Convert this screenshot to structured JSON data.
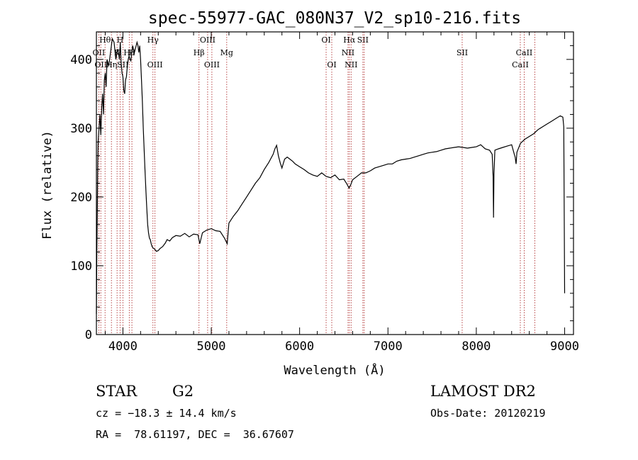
{
  "chart_data": {
    "type": "line",
    "title": "spec-55977-GAC_080N37_V2_sp10-216.fits",
    "xlabel": "Wavelength (Å)",
    "ylabel": "Flux (relative)",
    "xlim": [
      3700,
      9100
    ],
    "ylim": [
      0,
      440
    ],
    "xticks": [
      4000,
      5000,
      6000,
      7000,
      8000,
      9000
    ],
    "yticks": [
      0,
      100,
      200,
      300,
      400
    ],
    "grid": false,
    "line_color": "#000000",
    "marker_color": "#b03030",
    "series": [
      {
        "x": [
          3700,
          3705,
          3710,
          3715,
          3720,
          3730,
          3740,
          3750,
          3760,
          3770,
          3780,
          3790,
          3800,
          3810,
          3820,
          3840,
          3860,
          3880,
          3900,
          3920,
          3940,
          3950,
          3960,
          3970,
          3980,
          3990,
          4000,
          4010,
          4020,
          4030,
          4040,
          4050,
          4060,
          4070,
          4080,
          4090,
          4100,
          4110,
          4120,
          4130,
          4140,
          4150,
          4160,
          4170,
          4180,
          4190,
          4200,
          4210,
          4220,
          4230,
          4240,
          4250,
          4260,
          4270,
          4280,
          4290,
          4300,
          4310,
          4320,
          4330,
          4340,
          4350,
          4360,
          4380,
          4400,
          4420,
          4450,
          4480,
          4500,
          4530,
          4560,
          4600,
          4650,
          4700,
          4750,
          4800,
          4850,
          4870,
          4900,
          4950,
          5000,
          5050,
          5100,
          5150,
          5180,
          5200,
          5250,
          5300,
          5350,
          5400,
          5450,
          5500,
          5550,
          5600,
          5650,
          5700,
          5720,
          5740,
          5760,
          5780,
          5800,
          5830,
          5860,
          5890,
          5920,
          5950,
          6000,
          6050,
          6100,
          6150,
          6200,
          6250,
          6300,
          6350,
          6400,
          6450,
          6500,
          6530,
          6560,
          6580,
          6600,
          6650,
          6700,
          6750,
          6800,
          6850,
          6900,
          6950,
          7000,
          7050,
          7100,
          7150,
          7200,
          7250,
          7300,
          7350,
          7400,
          7450,
          7500,
          7550,
          7600,
          7650,
          7700,
          7750,
          7800,
          7850,
          7900,
          7950,
          8000,
          8050,
          8100,
          8150,
          8180,
          8190,
          8195,
          8200,
          8210,
          8250,
          8300,
          8350,
          8400,
          8430,
          8440,
          8450,
          8460,
          8500,
          8550,
          8600,
          8650,
          8700,
          8750,
          8800,
          8850,
          8900,
          8950,
          8980,
          8990,
          9000
        ],
        "y": [
          30,
          120,
          170,
          250,
          280,
          300,
          320,
          290,
          330,
          350,
          320,
          370,
          380,
          360,
          400,
          390,
          410,
          430,
          425,
          400,
          415,
          410,
          400,
          425,
          395,
          380,
          375,
          355,
          350,
          370,
          375,
          390,
          400,
          405,
          400,
          398,
          410,
          420,
          415,
          410,
          415,
          420,
          425,
          420,
          410,
          420,
          400,
          370,
          340,
          300,
          270,
          240,
          210,
          185,
          160,
          148,
          140,
          138,
          132,
          128,
          126,
          125,
          124,
          121,
          122,
          125,
          128,
          133,
          138,
          136,
          141,
          144,
          143,
          147,
          142,
          146,
          145,
          132,
          148,
          152,
          154,
          151,
          150,
          140,
          132,
          162,
          172,
          180,
          190,
          200,
          210,
          220,
          228,
          240,
          250,
          262,
          270,
          275,
          260,
          250,
          242,
          255,
          258,
          255,
          252,
          248,
          244,
          240,
          235,
          232,
          230,
          235,
          230,
          228,
          232,
          225,
          226,
          220,
          213,
          218,
          225,
          230,
          235,
          235,
          238,
          242,
          244,
          246,
          248,
          248,
          252,
          254,
          255,
          256,
          258,
          260,
          262,
          264,
          265,
          266,
          268,
          270,
          271,
          272,
          273,
          272,
          271,
          272,
          273,
          276,
          270,
          268,
          262,
          230,
          170,
          232,
          268,
          270,
          272,
          274,
          276,
          262,
          258,
          248,
          265,
          278,
          284,
          288,
          292,
          298,
          302,
          306,
          310,
          314,
          318,
          316,
          302,
          60
        ]
      }
    ],
    "spectral_lines": [
      {
        "wl": 3727,
        "label": "OII",
        "tier": 1
      },
      {
        "wl": 3750,
        "label": "OII",
        "tier": 2
      },
      {
        "wl": 3798,
        "label": "Hθ",
        "tier": 0
      },
      {
        "wl": 3870,
        "label": "Hη",
        "tier": 2
      },
      {
        "wl": 3934,
        "label": "K",
        "tier": 1
      },
      {
        "wl": 3968,
        "label": "H",
        "tier": 0
      },
      {
        "wl": 4000,
        "label": "SII",
        "tier": 2
      },
      {
        "wl": 4072,
        "label": "Hδ",
        "tier": 1
      },
      {
        "wl": 4102,
        "label": "H",
        "tier": 1
      },
      {
        "wl": 4340,
        "label": "Hγ",
        "tier": 0
      },
      {
        "wl": 4363,
        "label": "OIII",
        "tier": 2
      },
      {
        "wl": 4861,
        "label": "Hβ",
        "tier": 1
      },
      {
        "wl": 4959,
        "label": "OIII",
        "tier": 0
      },
      {
        "wl": 5007,
        "label": "OIII",
        "tier": 2
      },
      {
        "wl": 5175,
        "label": "Mg",
        "tier": 1
      },
      {
        "wl": 6300,
        "label": "OI",
        "tier": 0
      },
      {
        "wl": 6364,
        "label": "OI",
        "tier": 2
      },
      {
        "wl": 6548,
        "label": "NII",
        "tier": 1
      },
      {
        "wl": 6563,
        "label": "Hα",
        "tier": 0
      },
      {
        "wl": 6583,
        "label": "NII",
        "tier": 2
      },
      {
        "wl": 6716,
        "label": "SII",
        "tier": 0
      },
      {
        "wl": 6731,
        "label": "",
        "tier": 0
      },
      {
        "wl": 7840,
        "label": "SII",
        "tier": 1
      },
      {
        "wl": 8498,
        "label": "CaII",
        "tier": 2
      },
      {
        "wl": 8542,
        "label": "CaII",
        "tier": 1
      },
      {
        "wl": 8662,
        "label": "",
        "tier": 1
      }
    ]
  },
  "info": {
    "object_class": "STAR",
    "subclass": "G2",
    "survey": "LAMOST DR2",
    "cz": "cz = −18.3 ± 14.4 km/s",
    "obs_date": "Obs-Date: 20120219",
    "coords": "RA =  78.61197, DEC =  36.67607"
  }
}
